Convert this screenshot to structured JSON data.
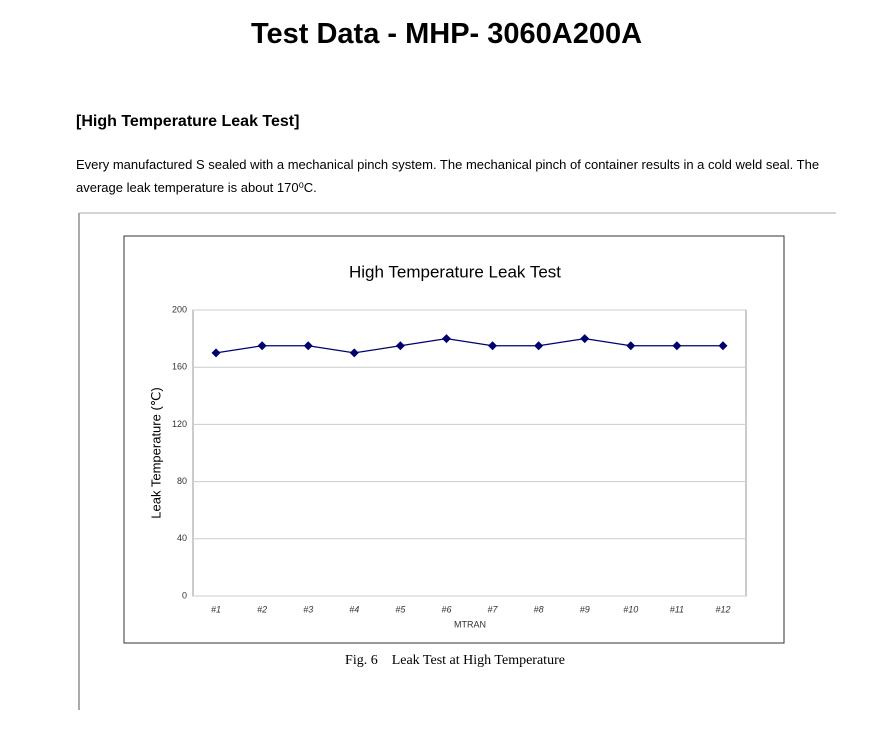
{
  "header": {
    "title": "Test Data - MHP- 3060A200A"
  },
  "section": {
    "heading": "[High Temperature Leak Test]",
    "paragraph": "Every manufactured S sealed with a mechanical pinch system. The mechanical pinch of container results in a cold weld seal. The average leak temperature is about 170⁰C."
  },
  "chart_data": {
    "type": "line",
    "title": "High Temperature Leak Test",
    "y_label": "Leak Temperature (℃)",
    "x_label": "MTRAN",
    "categories": [
      "#1",
      "#2",
      "#3",
      "#4",
      "#5",
      "#6",
      "#7",
      "#8",
      "#9",
      "#10",
      "#11",
      "#12"
    ],
    "values": [
      170,
      175,
      175,
      170,
      175,
      180,
      175,
      175,
      180,
      175,
      175,
      175
    ],
    "color": "#00006e",
    "ylim": [
      0,
      200
    ],
    "yticks": [
      0,
      40,
      80,
      120,
      160,
      200
    ],
    "grid": true
  },
  "figure_caption": "Fig. 6    Leak Test at High Temperature"
}
